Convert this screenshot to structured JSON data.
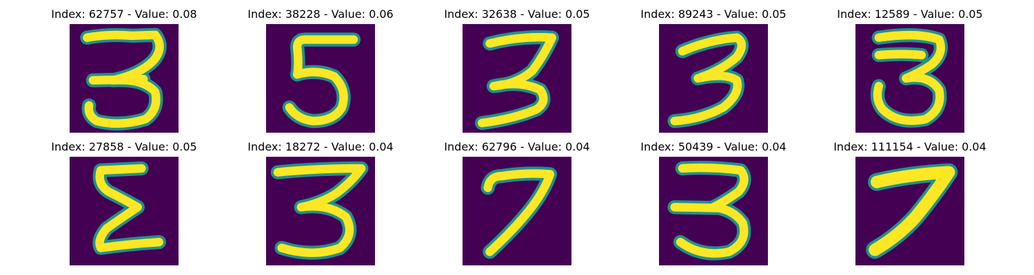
{
  "colors": {
    "background": "#440154",
    "mid": "#21918c",
    "stroke": "#fde725"
  },
  "panels": [
    {
      "title": "Index: 62757 - Value: 0.08",
      "digit": "3"
    },
    {
      "title": "Index: 38228 - Value: 0.06",
      "digit": "5"
    },
    {
      "title": "Index: 32638 - Value: 0.05",
      "digit": "3"
    },
    {
      "title": "Index: 89243 - Value: 0.05",
      "digit": "3"
    },
    {
      "title": "Index: 12589 - Value: 0.05",
      "digit": "3"
    },
    {
      "title": "Index: 27858 - Value: 0.05",
      "digit": "5"
    },
    {
      "title": "Index: 18272 - Value: 0.04",
      "digit": "3"
    },
    {
      "title": "Index: 62796 - Value: 0.04",
      "digit": "7"
    },
    {
      "title": "Index: 50439 - Value: 0.04",
      "digit": "3"
    },
    {
      "title": "Index: 111154 - Value: 0.04",
      "digit": "7"
    }
  ]
}
